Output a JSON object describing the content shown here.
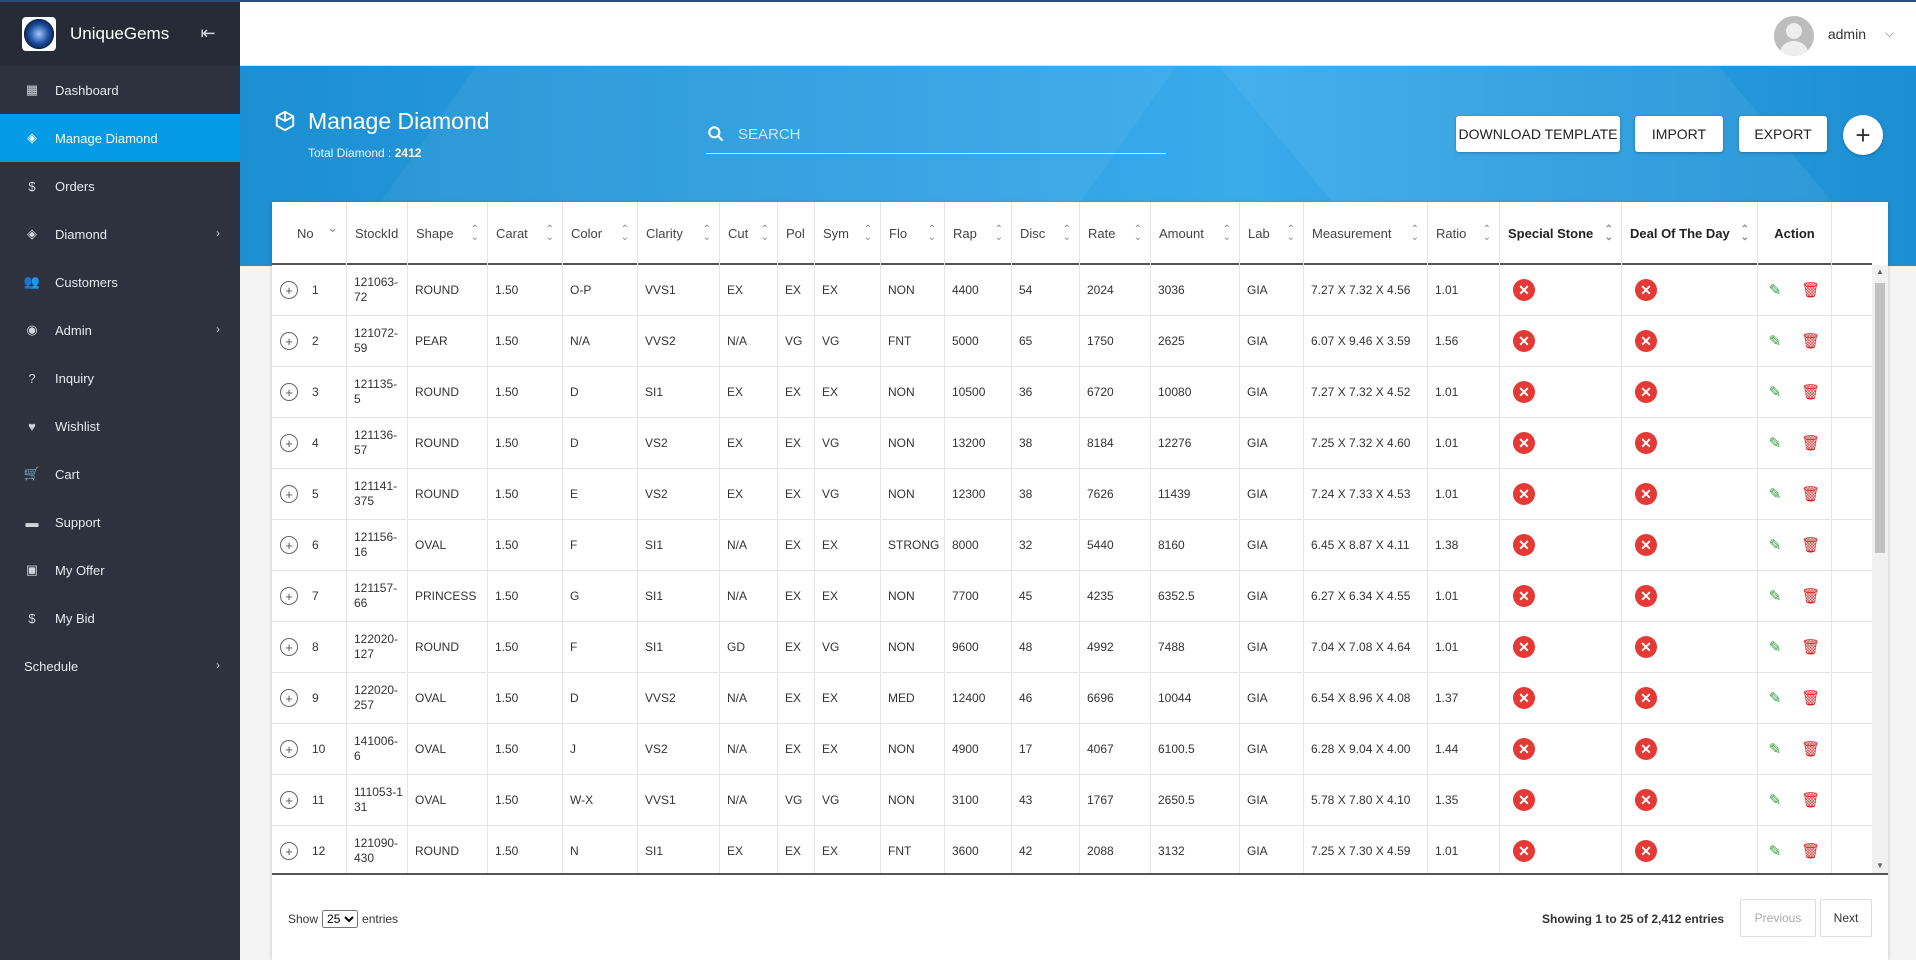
{
  "app": {
    "name": "UniqueGems"
  },
  "user": {
    "name": "admin"
  },
  "sidebar": {
    "items": [
      {
        "label": "Dashboard",
        "icon": "dashboard-icon",
        "glyph": "▦",
        "arrow": false,
        "active": false
      },
      {
        "label": "Manage Diamond",
        "icon": "diamond-icon",
        "glyph": "◈",
        "arrow": false,
        "active": true
      },
      {
        "label": "Orders",
        "icon": "dollar-icon",
        "glyph": "$",
        "arrow": false,
        "active": false
      },
      {
        "label": "Diamond",
        "icon": "diamond-icon",
        "glyph": "◈",
        "arrow": true,
        "active": false
      },
      {
        "label": "Customers",
        "icon": "people-icon",
        "glyph": "👥",
        "arrow": false,
        "active": false
      },
      {
        "label": "Admin",
        "icon": "account-icon",
        "glyph": "◉",
        "arrow": true,
        "active": false
      },
      {
        "label": "Inquiry",
        "icon": "help-icon",
        "glyph": "?",
        "arrow": false,
        "active": false
      },
      {
        "label": "Wishlist",
        "icon": "heart-icon",
        "glyph": "♥",
        "arrow": false,
        "active": false
      },
      {
        "label": "Cart",
        "icon": "cart-icon",
        "glyph": "🛒",
        "arrow": false,
        "active": false
      },
      {
        "label": "Support",
        "icon": "chat-icon",
        "glyph": "▬",
        "arrow": false,
        "active": false
      },
      {
        "label": "My Offer",
        "icon": "money-icon",
        "glyph": "▣",
        "arrow": false,
        "active": false
      },
      {
        "label": "My Bid",
        "icon": "dollar-icon",
        "glyph": "$",
        "arrow": false,
        "active": false
      },
      {
        "label": "Schedule",
        "icon": "",
        "glyph": "",
        "arrow": true,
        "active": false
      }
    ]
  },
  "header": {
    "title": "Manage Diamond",
    "subtitle_prefix": "Total Diamond : ",
    "total": "2412",
    "search_placeholder": "SEARCH",
    "buttons": {
      "download_template": "DOWNLOAD TEMPLATE",
      "import": "IMPORT",
      "export": "EXPORT"
    }
  },
  "table": {
    "columns": [
      {
        "label": "No",
        "w": 75,
        "sort": "desc"
      },
      {
        "label": "StockId",
        "w": 61,
        "sort": "none"
      },
      {
        "label": "Shape",
        "w": 80,
        "sort": "both"
      },
      {
        "label": "Carat",
        "w": 75,
        "sort": "both"
      },
      {
        "label": "Color",
        "w": 75,
        "sort": "both"
      },
      {
        "label": "Clarity",
        "w": 82,
        "sort": "both"
      },
      {
        "label": "Cut",
        "w": 58,
        "sort": "both"
      },
      {
        "label": "Pol",
        "w": 37,
        "sort": "none"
      },
      {
        "label": "Sym",
        "w": 66,
        "sort": "both"
      },
      {
        "label": "Flo",
        "w": 64,
        "sort": "both"
      },
      {
        "label": "Rap",
        "w": 67,
        "sort": "both"
      },
      {
        "label": "Disc",
        "w": 68,
        "sort": "both"
      },
      {
        "label": "Rate",
        "w": 71,
        "sort": "both"
      },
      {
        "label": "Amount",
        "w": 89,
        "sort": "both"
      },
      {
        "label": "Lab",
        "w": 64,
        "sort": "both"
      },
      {
        "label": "Measurement",
        "w": 124,
        "sort": "both"
      },
      {
        "label": "Ratio",
        "w": 72,
        "sort": "both"
      },
      {
        "label": "Special Stone",
        "w": 122,
        "sort": "both",
        "bold": true
      },
      {
        "label": "Deal Of The Day",
        "w": 136,
        "sort": "both",
        "bold": true
      },
      {
        "label": "Action",
        "w": 74,
        "sort": "none",
        "bold": true,
        "center": true
      }
    ],
    "rows": [
      [
        "1",
        "121063-72",
        "ROUND",
        "1.50",
        "O-P",
        "VVS1",
        "EX",
        "EX",
        "EX",
        "NON",
        "4400",
        "54",
        "2024",
        "3036",
        "GIA",
        "7.27 X 7.32 X 4.56",
        "1.01"
      ],
      [
        "2",
        "121072-59",
        "PEAR",
        "1.50",
        "N/A",
        "VVS2",
        "N/A",
        "VG",
        "VG",
        "FNT",
        "5000",
        "65",
        "1750",
        "2625",
        "GIA",
        "6.07 X 9.46 X 3.59",
        "1.56"
      ],
      [
        "3",
        "121135-5",
        "ROUND",
        "1.50",
        "D",
        "SI1",
        "EX",
        "EX",
        "EX",
        "NON",
        "10500",
        "36",
        "6720",
        "10080",
        "GIA",
        "7.27 X 7.32 X 4.52",
        "1.01"
      ],
      [
        "4",
        "121136-57",
        "ROUND",
        "1.50",
        "D",
        "VS2",
        "EX",
        "EX",
        "VG",
        "NON",
        "13200",
        "38",
        "8184",
        "12276",
        "GIA",
        "7.25 X 7.32 X 4.60",
        "1.01"
      ],
      [
        "5",
        "121141-375",
        "ROUND",
        "1.50",
        "E",
        "VS2",
        "EX",
        "EX",
        "VG",
        "NON",
        "12300",
        "38",
        "7626",
        "11439",
        "GIA",
        "7.24 X 7.33 X 4.53",
        "1.01"
      ],
      [
        "6",
        "121156-16",
        "OVAL",
        "1.50",
        "F",
        "SI1",
        "N/A",
        "EX",
        "EX",
        "STRONG",
        "8000",
        "32",
        "5440",
        "8160",
        "GIA",
        "6.45 X 8.87 X 4.11",
        "1.38"
      ],
      [
        "7",
        "121157-66",
        "PRINCESS",
        "1.50",
        "G",
        "SI1",
        "N/A",
        "EX",
        "EX",
        "NON",
        "7700",
        "45",
        "4235",
        "6352.5",
        "GIA",
        "6.27 X 6.34 X 4.55",
        "1.01"
      ],
      [
        "8",
        "122020-127",
        "ROUND",
        "1.50",
        "F",
        "SI1",
        "GD",
        "EX",
        "VG",
        "NON",
        "9600",
        "48",
        "4992",
        "7488",
        "GIA",
        "7.04 X 7.08 X 4.64",
        "1.01"
      ],
      [
        "9",
        "122020-257",
        "OVAL",
        "1.50",
        "D",
        "VVS2",
        "N/A",
        "EX",
        "EX",
        "MED",
        "12400",
        "46",
        "6696",
        "10044",
        "GIA",
        "6.54 X 8.96 X 4.08",
        "1.37"
      ],
      [
        "10",
        "141006-6",
        "OVAL",
        "1.50",
        "J",
        "VS2",
        "N/A",
        "EX",
        "EX",
        "NON",
        "4900",
        "17",
        "4067",
        "6100.5",
        "GIA",
        "6.28 X 9.04 X 4.00",
        "1.44"
      ],
      [
        "11",
        "111053-131",
        "OVAL",
        "1.50",
        "W-X",
        "VVS1",
        "N/A",
        "VG",
        "VG",
        "NON",
        "3100",
        "43",
        "1767",
        "2650.5",
        "GIA",
        "5.78 X 7.80 X 4.10",
        "1.35"
      ],
      [
        "12",
        "121090-430",
        "ROUND",
        "1.50",
        "N",
        "SI1",
        "EX",
        "EX",
        "EX",
        "FNT",
        "3600",
        "42",
        "2088",
        "3132",
        "GIA",
        "7.25 X 7.30 X 4.59",
        "1.01"
      ]
    ]
  },
  "footer": {
    "show_label": "Show",
    "page_size": "25",
    "entries_label": "entries",
    "showing": "Showing 1 to 25 of 2,412 entries",
    "previous": "Previous",
    "next": "Next"
  },
  "colors": {
    "sidebar": "#2d323e",
    "active": "#039be5",
    "header": "#2fa0e4",
    "danger": "#e53935",
    "edit": "#2e9b3a"
  }
}
